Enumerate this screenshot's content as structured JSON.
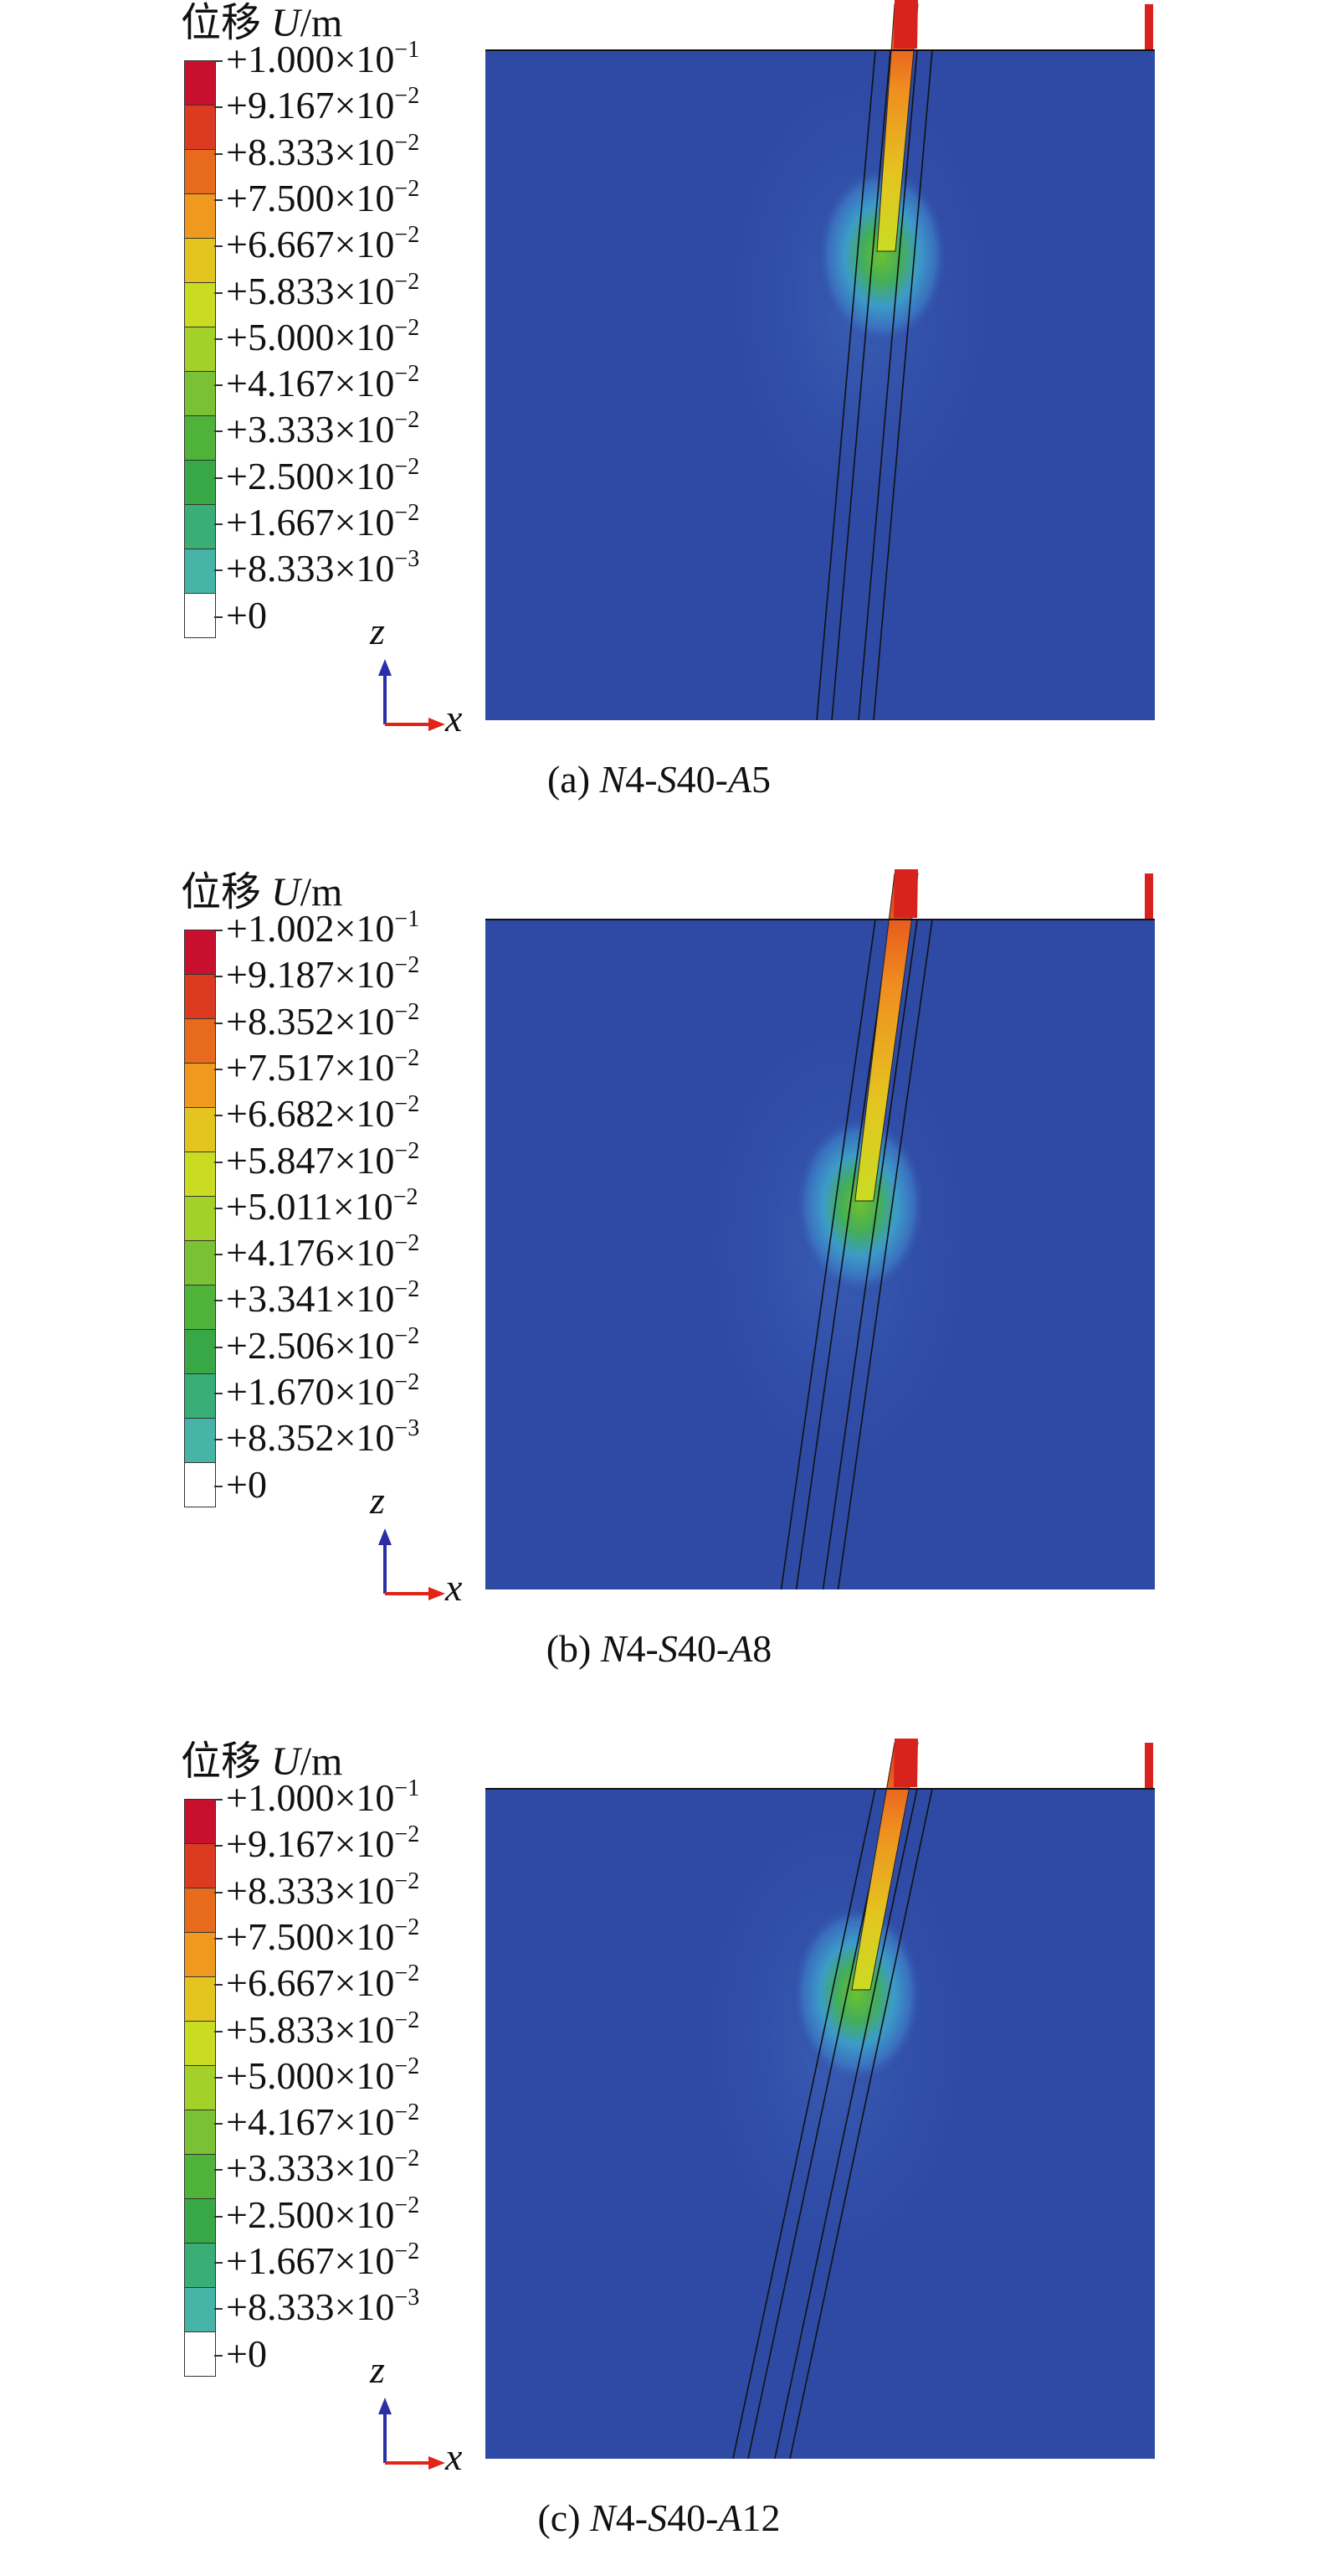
{
  "legend_title_prefix": "位移 ",
  "legend_title_var": "U",
  "legend_title_unit": "/m",
  "axis_labels": {
    "vertical": "z",
    "horizontal": "x"
  },
  "colormap": [
    "#c8102e",
    "#dc3b22",
    "#e86a1c",
    "#ef9a1e",
    "#e4c520",
    "#c9dc22",
    "#a3d12a",
    "#7ac233",
    "#4fb33a",
    "#38a847",
    "#3aae77",
    "#46b4a6",
    "#4aa3cf",
    "#3b7cc8",
    "#3358b0",
    "#2d46a1"
  ],
  "panels": [
    {
      "caption_prefix": "(a) ",
      "caption_label": [
        {
          "t": "N",
          "i": true
        },
        {
          "t": "4-",
          "i": false
        },
        {
          "t": "S",
          "i": true
        },
        {
          "t": "40-",
          "i": false
        },
        {
          "t": "A",
          "i": true
        },
        {
          "t": "5",
          "i": false
        }
      ],
      "caption_text": "N4-S40-A5",
      "legend_values": [
        {
          "mant": "+1.000",
          "exp": "-1"
        },
        {
          "mant": "+9.167",
          "exp": "-2"
        },
        {
          "mant": "+8.333",
          "exp": "-2"
        },
        {
          "mant": "+7.500",
          "exp": "-2"
        },
        {
          "mant": "+6.667",
          "exp": "-2"
        },
        {
          "mant": "+5.833",
          "exp": "-2"
        },
        {
          "mant": "+5.000",
          "exp": "-2"
        },
        {
          "mant": "+4.167",
          "exp": "-2"
        },
        {
          "mant": "+3.333",
          "exp": "-2"
        },
        {
          "mant": "+2.500",
          "exp": "-2"
        },
        {
          "mant": "+1.667",
          "exp": "-2"
        },
        {
          "mant": "+8.333",
          "exp": "-3"
        },
        {
          "mant": "+0",
          "exp": ""
        }
      ],
      "anchor_angle_deg": 5,
      "displacement_zone_depth": 0.3
    },
    {
      "caption_prefix": "(b) ",
      "caption_label": [
        {
          "t": "N",
          "i": true
        },
        {
          "t": "4-",
          "i": false
        },
        {
          "t": "S",
          "i": true
        },
        {
          "t": "40-",
          "i": false
        },
        {
          "t": "A",
          "i": true
        },
        {
          "t": "8",
          "i": false
        }
      ],
      "caption_text": "N4-S40-A8",
      "legend_values": [
        {
          "mant": "+1.002",
          "exp": "-1"
        },
        {
          "mant": "+9.187",
          "exp": "-2"
        },
        {
          "mant": "+8.352",
          "exp": "-2"
        },
        {
          "mant": "+7.517",
          "exp": "-2"
        },
        {
          "mant": "+6.682",
          "exp": "-2"
        },
        {
          "mant": "+5.847",
          "exp": "-2"
        },
        {
          "mant": "+5.011",
          "exp": "-2"
        },
        {
          "mant": "+4.176",
          "exp": "-2"
        },
        {
          "mant": "+3.341",
          "exp": "-2"
        },
        {
          "mant": "+2.506",
          "exp": "-2"
        },
        {
          "mant": "+1.670",
          "exp": "-2"
        },
        {
          "mant": "+8.352",
          "exp": "-3"
        },
        {
          "mant": "+0",
          "exp": ""
        }
      ],
      "anchor_angle_deg": 8,
      "displacement_zone_depth": 0.42
    },
    {
      "caption_prefix": "(c) ",
      "caption_label": [
        {
          "t": "N",
          "i": true
        },
        {
          "t": "4-",
          "i": false
        },
        {
          "t": "S",
          "i": true
        },
        {
          "t": "40-",
          "i": false
        },
        {
          "t": "A",
          "i": true
        },
        {
          "t": "12",
          "i": false
        }
      ],
      "caption_text": "N4-S40-A12",
      "legend_values": [
        {
          "mant": "+1.000",
          "exp": "-1"
        },
        {
          "mant": "+9.167",
          "exp": "-2"
        },
        {
          "mant": "+8.333",
          "exp": "-2"
        },
        {
          "mant": "+7.500",
          "exp": "-2"
        },
        {
          "mant": "+6.667",
          "exp": "-2"
        },
        {
          "mant": "+5.833",
          "exp": "-2"
        },
        {
          "mant": "+5.000",
          "exp": "-2"
        },
        {
          "mant": "+4.167",
          "exp": "-2"
        },
        {
          "mant": "+3.333",
          "exp": "-2"
        },
        {
          "mant": "+2.500",
          "exp": "-2"
        },
        {
          "mant": "+1.667",
          "exp": "-2"
        },
        {
          "mant": "+8.333",
          "exp": "-3"
        },
        {
          "mant": "+0",
          "exp": ""
        }
      ],
      "anchor_angle_deg": 12,
      "displacement_zone_depth": 0.3
    }
  ]
}
